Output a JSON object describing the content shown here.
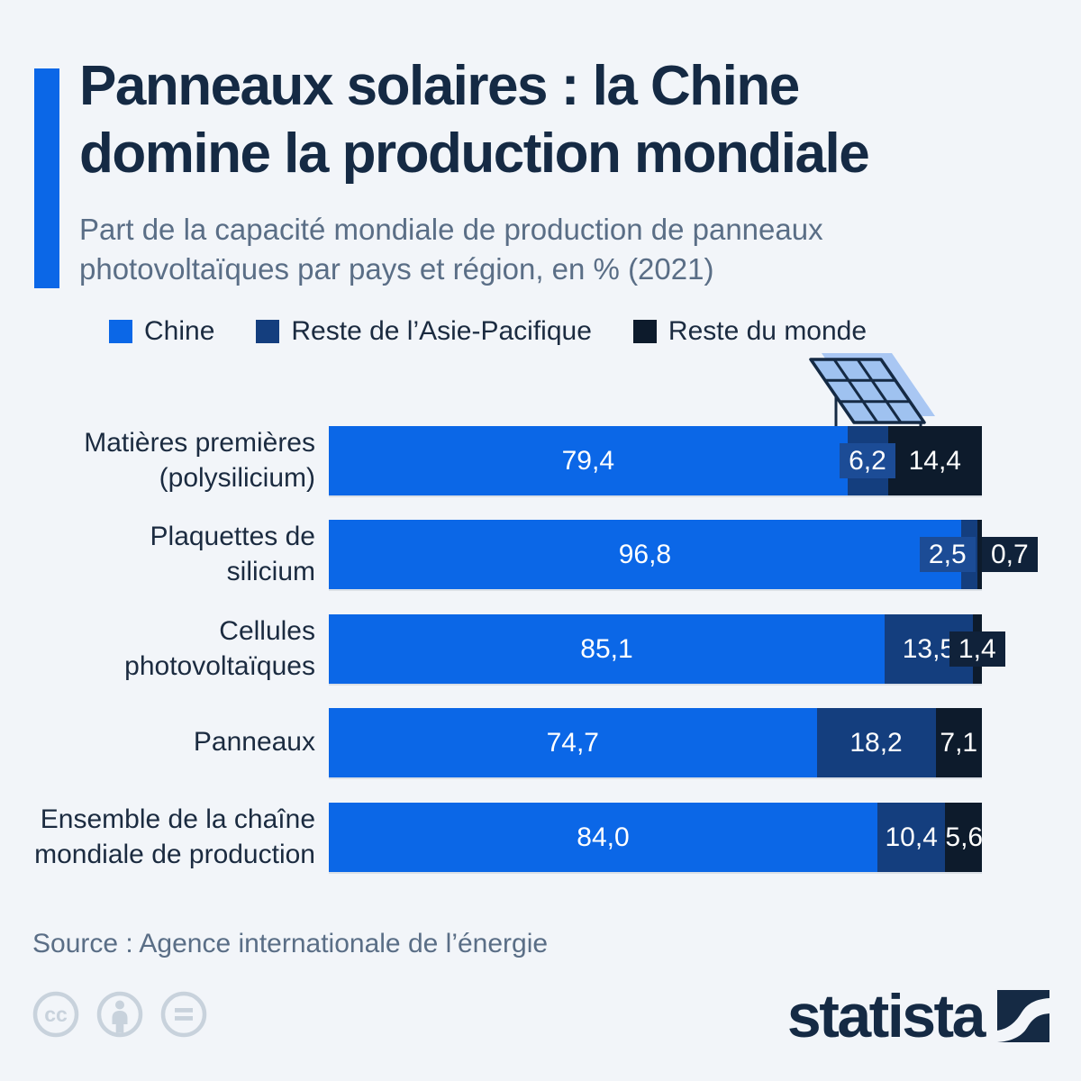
{
  "header": {
    "title_line1": "Panneaux solaires : la Chine",
    "title_line2": "domine la production mondiale",
    "subtitle_line1": "Part de la capacité mondiale de production de panneaux",
    "subtitle_line2": "photovoltaïques par pays et région, en % (2021)"
  },
  "legend": [
    {
      "label": "Chine",
      "color": "#0B67E7"
    },
    {
      "label": "Reste de l’Asie-Pacifique",
      "color": "#143E7E"
    },
    {
      "label": "Reste du monde",
      "color": "#0D1B2C"
    }
  ],
  "rows": [
    {
      "label_line1": "Matières premières",
      "label_line2": "(polysilicium)"
    },
    {
      "label_line1": "Plaquettes de",
      "label_line2": "silicium"
    },
    {
      "label_line1": "Cellules",
      "label_line2": "photovoltaïques"
    },
    {
      "label_line1": "Panneaux",
      "label_line2": ""
    },
    {
      "label_line1": "Ensemble de la chaîne",
      "label_line2": "mondiale de production"
    }
  ],
  "chart_data": {
    "type": "bar",
    "orientation": "horizontal",
    "stacked": true,
    "unit": "%",
    "xlim": [
      0,
      100
    ],
    "title": "Panneaux solaires : la Chine domine la production mondiale",
    "subtitle": "Part de la capacité mondiale de production de panneaux photovoltaïques par pays et région, en % (2021)",
    "categories": [
      "Matières premières (polysilicium)",
      "Plaquettes de silicium",
      "Cellules photovoltaïques",
      "Panneaux",
      "Ensemble de la chaîne mondiale de production"
    ],
    "series": [
      {
        "name": "Chine",
        "color": "#0B67E7",
        "flag_color": "#1C4C96",
        "values": [
          79.4,
          96.8,
          85.1,
          74.7,
          84.0
        ]
      },
      {
        "name": "Reste de l’Asie-Pacifique",
        "color": "#143E7E",
        "flag_color": "#1C4C96",
        "values": [
          6.2,
          2.5,
          13.5,
          18.2,
          10.4
        ]
      },
      {
        "name": "Reste du monde",
        "color": "#0D1B2C",
        "flag_color": "#10223A",
        "values": [
          14.4,
          0.7,
          1.4,
          7.1,
          5.6
        ]
      }
    ],
    "value_labels": [
      [
        "79,4",
        "6,2",
        "14,4"
      ],
      [
        "96,8",
        "2,5",
        "0,7"
      ],
      [
        "85,1",
        "13,5",
        "1,4"
      ],
      [
        "74,7",
        "18,2",
        "7,1"
      ],
      [
        "84,0",
        "10,4",
        "5,6"
      ]
    ],
    "legend_position": "top"
  },
  "footer": {
    "source": "Source : Agence internationale de l’énergie",
    "brand": "statista"
  }
}
